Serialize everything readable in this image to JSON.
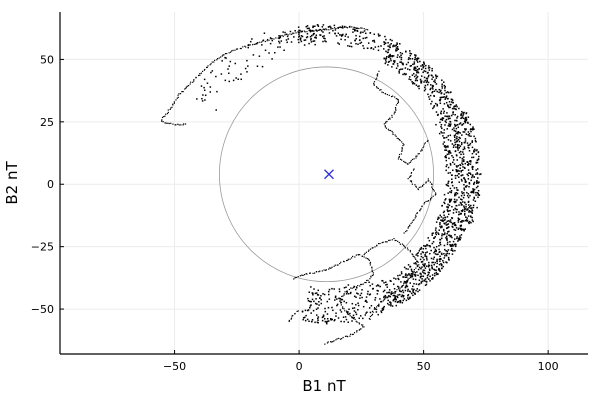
{
  "chart_data": {
    "type": "scatter",
    "title": "",
    "xlabel": "B1 nT",
    "ylabel": "B2 nT",
    "xlim": [
      -96,
      116
    ],
    "ylim": [
      -68,
      69
    ],
    "xticks": [
      -50,
      0,
      50,
      100
    ],
    "yticks": [
      -50,
      -25,
      0,
      25,
      50
    ],
    "grid": true,
    "legend": "none",
    "colors": {
      "points": "#000000",
      "circle": "#9a9a9a",
      "center": "#2f2fd8",
      "grid": "#ececec"
    },
    "reference_circle": {
      "cx": 11,
      "cy": 4,
      "r": 43
    },
    "center_marker": {
      "x": 12,
      "y": 4,
      "symbol": "×"
    },
    "point_clusters": [
      {
        "name": "arc-top",
        "cx": 11,
        "cy": 4,
        "r_min": 52,
        "r_max": 60,
        "theta_min": 65,
        "theta_max": 110,
        "n": 180
      },
      {
        "name": "arc-upper-right",
        "cx": 11,
        "cy": 4,
        "r_min": 50,
        "r_max": 60,
        "theta_min": 25,
        "theta_max": 65,
        "n": 320
      },
      {
        "name": "arc-right",
        "cx": 11,
        "cy": 4,
        "r_min": 48,
        "r_max": 62,
        "theta_min": -20,
        "theta_max": 25,
        "n": 520
      },
      {
        "name": "arc-lower-right",
        "cx": 11,
        "cy": 4,
        "r_min": 48,
        "r_max": 60,
        "theta_min": -65,
        "theta_max": -20,
        "n": 480
      },
      {
        "name": "arc-bottom",
        "cx": 11,
        "cy": 4,
        "r_min": 45,
        "r_max": 60,
        "theta_min": -100,
        "theta_max": -65,
        "n": 200
      },
      {
        "name": "arc-upper-left",
        "cx": 11,
        "cy": 4,
        "r_min": 50,
        "r_max": 62,
        "theta_min": 110,
        "theta_max": 150,
        "n": 60
      }
    ],
    "trails": [
      {
        "name": "upper-left-trail",
        "points": [
          [
            -55,
            26
          ],
          [
            -52,
            30
          ],
          [
            -48,
            36
          ],
          [
            -42,
            42
          ],
          [
            -36,
            48
          ],
          [
            -30,
            52
          ],
          [
            -22,
            55
          ],
          [
            -15,
            57
          ],
          [
            -8,
            59
          ],
          [
            0,
            61
          ],
          [
            10,
            62
          ],
          [
            20,
            63
          ],
          [
            28,
            62
          ]
        ]
      },
      {
        "name": "upper-left-tail",
        "points": [
          [
            -55,
            25
          ],
          [
            -50,
            24
          ],
          [
            -45,
            24
          ]
        ]
      },
      {
        "name": "inner-upper-loop",
        "points": [
          [
            32,
            45
          ],
          [
            30,
            40
          ],
          [
            35,
            36
          ],
          [
            40,
            34
          ],
          [
            38,
            28
          ],
          [
            34,
            24
          ],
          [
            38,
            20
          ],
          [
            42,
            16
          ],
          [
            40,
            10
          ],
          [
            44,
            8
          ],
          [
            48,
            12
          ],
          [
            52,
            18
          ]
        ]
      },
      {
        "name": "inner-mid-loop",
        "points": [
          [
            46,
            6
          ],
          [
            44,
            2
          ],
          [
            48,
            -2
          ],
          [
            52,
            2
          ],
          [
            55,
            -4
          ],
          [
            50,
            -8
          ],
          [
            46,
            -14
          ],
          [
            42,
            -20
          ]
        ]
      },
      {
        "name": "lower-left-trail",
        "points": [
          [
            -2,
            -38
          ],
          [
            2,
            -36
          ],
          [
            8,
            -35
          ],
          [
            14,
            -33
          ],
          [
            20,
            -30
          ],
          [
            24,
            -28
          ],
          [
            28,
            -30
          ],
          [
            30,
            -36
          ],
          [
            26,
            -40
          ],
          [
            20,
            -42
          ],
          [
            16,
            -46
          ],
          [
            18,
            -50
          ],
          [
            22,
            -54
          ],
          [
            26,
            -57
          ],
          [
            22,
            -60
          ],
          [
            16,
            -62
          ],
          [
            10,
            -64
          ]
        ]
      },
      {
        "name": "lower-left-tail",
        "points": [
          [
            -4,
            -55
          ],
          [
            -2,
            -52
          ],
          [
            0,
            -50
          ]
        ]
      },
      {
        "name": "lower-right-trail",
        "points": [
          [
            26,
            -28
          ],
          [
            32,
            -24
          ],
          [
            38,
            -22
          ],
          [
            44,
            -26
          ],
          [
            48,
            -32
          ],
          [
            44,
            -38
          ],
          [
            40,
            -42
          ],
          [
            34,
            -46
          ],
          [
            30,
            -50
          ],
          [
            28,
            -55
          ]
        ]
      }
    ]
  }
}
